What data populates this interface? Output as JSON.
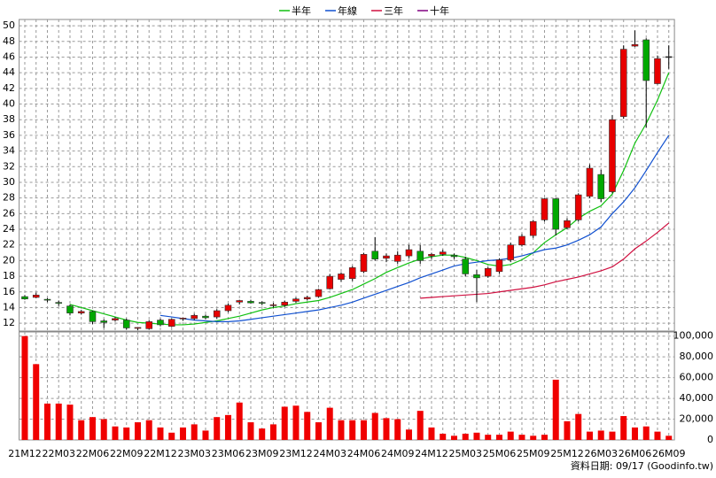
{
  "chart_data": {
    "type": "candlestick",
    "categories": [
      "21M12",
      null,
      null,
      "22M03",
      null,
      null,
      "22M06",
      null,
      null,
      "22M09",
      null,
      null,
      "22M12",
      null,
      null,
      "23M03",
      null,
      null,
      "23M06",
      null,
      null,
      "23M09",
      null,
      null,
      "23M12",
      null,
      null,
      "24M03",
      null,
      null,
      "24M06",
      null,
      null,
      "24M09",
      null,
      null,
      "24M12",
      null,
      null,
      "25M03",
      null,
      null,
      "25M06",
      null,
      null,
      "25M09",
      null,
      null,
      "25M12",
      null,
      null,
      "26M03",
      null,
      null,
      "26M06",
      null,
      null,
      "26M09"
    ],
    "open": [
      15.4,
      15.3,
      15.0,
      14.6,
      14.2,
      13.3,
      13.5,
      12.3,
      12.4,
      12.4,
      11.3,
      11.3,
      12.4,
      11.6,
      12.5,
      12.6,
      12.9,
      12.8,
      13.6,
      14.7,
      14.8,
      14.6,
      14.2,
      14.3,
      14.8,
      15.1,
      15.4,
      16.4,
      17.6,
      17.7,
      18.6,
      21.2,
      20.3,
      19.9,
      20.6,
      21.2,
      20.6,
      20.8,
      20.7,
      20.2,
      18.2,
      18.0,
      18.6,
      20.1,
      22.0,
      23.2,
      25.2,
      27.9,
      24.2,
      25.2,
      28.2,
      31.0,
      28.8,
      38.4,
      47.4,
      48.2,
      42.6,
      46.0
    ],
    "high": [
      15.6,
      15.9,
      15.2,
      14.9,
      14.4,
      13.7,
      13.6,
      12.5,
      12.8,
      12.6,
      11.5,
      12.4,
      12.6,
      12.6,
      12.7,
      13.2,
      13.1,
      13.8,
      14.5,
      15.0,
      15.0,
      14.8,
      14.6,
      14.9,
      15.3,
      15.5,
      16.4,
      18.3,
      18.5,
      19.3,
      21.0,
      23.0,
      20.9,
      21.2,
      22.0,
      22.0,
      21.0,
      21.4,
      20.9,
      20.5,
      18.8,
      19.2,
      20.3,
      22.3,
      23.4,
      25.2,
      28.0,
      28.0,
      25.4,
      28.6,
      32.3,
      31.6,
      38.6,
      47.5,
      49.4,
      48.4,
      46.2,
      47.5
    ],
    "low": [
      15.0,
      15.2,
      14.7,
      14.2,
      13.0,
      13.1,
      11.9,
      11.4,
      12.2,
      11.2,
      11.1,
      11.2,
      11.6,
      11.5,
      12.3,
      12.4,
      12.5,
      12.6,
      13.4,
      14.4,
      14.5,
      14.3,
      14.0,
      14.1,
      14.6,
      14.9,
      15.3,
      16.3,
      17.3,
      17.4,
      18.4,
      20.0,
      19.8,
      19.6,
      20.3,
      19.6,
      20.2,
      20.6,
      20.2,
      18.0,
      14.7,
      17.8,
      18.3,
      19.8,
      21.8,
      22.9,
      25.0,
      23.2,
      24.0,
      25.0,
      28.0,
      27.5,
      28.6,
      38.1,
      47.3,
      37.0,
      42.5,
      44.5
    ],
    "close": [
      15.1,
      15.6,
      14.9,
      14.5,
      13.3,
      13.5,
      12.2,
      12.1,
      12.6,
      11.4,
      11.4,
      12.2,
      11.8,
      12.5,
      12.6,
      13.0,
      12.7,
      13.6,
      14.3,
      14.9,
      14.6,
      14.5,
      14.3,
      14.7,
      15.1,
      15.3,
      16.3,
      18.0,
      18.3,
      19.1,
      20.8,
      20.2,
      20.6,
      20.7,
      21.4,
      20.0,
      20.8,
      21.1,
      20.5,
      18.3,
      17.8,
      19.0,
      20.1,
      22.0,
      23.1,
      25.0,
      27.9,
      24.0,
      25.1,
      28.4,
      31.8,
      27.9,
      38.0,
      47.0,
      47.6,
      43.0,
      45.8,
      46.0
    ],
    "up_color": "#e80000",
    "down_color": "#00a800",
    "series": [
      {
        "name": "半年",
        "color": "#10c010",
        "values": [
          null,
          null,
          null,
          null,
          14.4,
          14.0,
          13.6,
          13.2,
          12.8,
          12.4,
          12.1,
          12.0,
          11.9,
          11.8,
          11.8,
          11.9,
          12.1,
          12.3,
          12.6,
          12.9,
          13.3,
          13.7,
          14.0,
          14.2,
          14.5,
          14.7,
          14.9,
          15.3,
          15.8,
          16.3,
          17.0,
          17.7,
          18.5,
          19.1,
          19.7,
          20.2,
          20.5,
          20.7,
          20.7,
          20.4,
          20.0,
          19.5,
          19.3,
          19.5,
          20.1,
          21.0,
          22.3,
          23.3,
          24.2,
          25.4,
          26.3,
          27.0,
          28.5,
          31.5,
          35.0,
          37.5,
          40.5,
          44.0
        ]
      },
      {
        "name": "年線",
        "color": "#1050d0",
        "values": [
          null,
          null,
          null,
          null,
          null,
          null,
          null,
          null,
          null,
          null,
          null,
          null,
          13.0,
          12.8,
          12.6,
          12.4,
          12.3,
          12.2,
          12.2,
          12.3,
          12.5,
          12.7,
          12.9,
          13.1,
          13.3,
          13.5,
          13.7,
          14.0,
          14.3,
          14.7,
          15.2,
          15.7,
          16.2,
          16.7,
          17.2,
          17.8,
          18.3,
          18.8,
          19.3,
          19.6,
          19.8,
          20.0,
          20.1,
          20.3,
          20.6,
          21.0,
          21.4,
          21.6,
          22.0,
          22.6,
          23.3,
          24.3,
          26.0,
          27.5,
          29.3,
          31.5,
          33.8,
          36.0
        ]
      },
      {
        "name": "三年",
        "color": "#d01040",
        "values": [
          null,
          null,
          null,
          null,
          null,
          null,
          null,
          null,
          null,
          null,
          null,
          null,
          null,
          null,
          null,
          null,
          null,
          null,
          null,
          null,
          null,
          null,
          null,
          null,
          null,
          null,
          null,
          null,
          null,
          null,
          null,
          null,
          null,
          null,
          null,
          15.2,
          15.3,
          15.4,
          15.5,
          15.6,
          15.7,
          15.8,
          16.0,
          16.2,
          16.4,
          16.6,
          16.9,
          17.3,
          17.6,
          17.9,
          18.3,
          18.7,
          19.2,
          20.2,
          21.5,
          22.5,
          23.6,
          24.8
        ]
      },
      {
        "name": "十年",
        "color": "#800080",
        "values": [
          null,
          null,
          null,
          null,
          null,
          null,
          null,
          null,
          null,
          null,
          null,
          null,
          null,
          null,
          null,
          null,
          null,
          null,
          null,
          null,
          null,
          null,
          null,
          null,
          null,
          null,
          null,
          null,
          null,
          null,
          null,
          null,
          null,
          null,
          null,
          null,
          null,
          null,
          null,
          null,
          null,
          null,
          null,
          null,
          null,
          null,
          null,
          null,
          null,
          null,
          null,
          null,
          null,
          null,
          null,
          null,
          null,
          null
        ]
      }
    ],
    "ylim": [
      11,
      50.8
    ],
    "yticks": [
      12,
      14,
      16,
      18,
      20,
      22,
      24,
      26,
      28,
      30,
      32,
      34,
      36,
      38,
      40,
      42,
      44,
      46,
      48,
      50
    ],
    "grid": true,
    "legend": "top",
    "volume": {
      "type": "bar",
      "color": "#f00000",
      "values": [
        100000,
        73000,
        35000,
        35000,
        34000,
        19000,
        22000,
        20000,
        13000,
        12000,
        17000,
        19000,
        12000,
        7000,
        12000,
        15000,
        9000,
        22000,
        24000,
        36000,
        17000,
        11000,
        15000,
        32000,
        33000,
        27000,
        17000,
        31000,
        19000,
        19000,
        19000,
        26000,
        21000,
        20000,
        10000,
        28000,
        12000,
        6000,
        4000,
        6000,
        7000,
        5000,
        5000,
        8000,
        5000,
        4000,
        5000,
        58000,
        18000,
        25000,
        8000,
        9000,
        8000,
        23000,
        12000,
        13000,
        8000,
        4000
      ],
      "ylim": [
        0,
        104000
      ],
      "yticks": [
        0,
        {
          "value": 20000,
          "label": "20,000"
        },
        {
          "value": 40000,
          "label": "40,000"
        },
        {
          "value": 60000,
          "label": "60,000"
        },
        {
          "value": 80000,
          "label": "80,000"
        },
        {
          "value": 100000,
          "label": "100,000"
        }
      ]
    },
    "footer": "資料日期: 09/17  (Goodinfo.tw)"
  }
}
